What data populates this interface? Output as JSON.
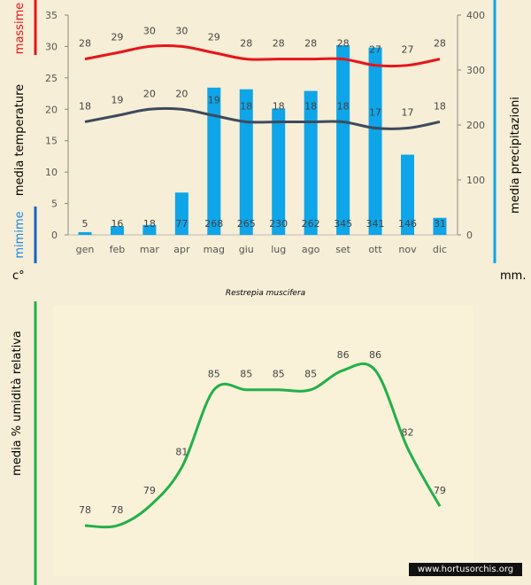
{
  "title": "Restrepia muscifera",
  "watermark": "www.hortusorchis.org",
  "labels": {
    "max": "massime",
    "mean_temp": "media  temperature",
    "min": "mimime",
    "precip": "media  precipitazioni",
    "temp_unit": "c°",
    "precip_unit": "mm.",
    "humidity": "media %  umidità relativa"
  },
  "colors": {
    "max": "#e8141b",
    "mean": "#3d4a5e",
    "bars": "#0ea5e9",
    "humidity": "#22b04a",
    "min_marker": "#1565c0",
    "background": "#f6eed6"
  },
  "chart_data": [
    {
      "type": "bar+line",
      "categories": [
        "gen",
        "feb",
        "mar",
        "apr",
        "mag",
        "giu",
        "lug",
        "ago",
        "set",
        "ott",
        "nov",
        "dic"
      ],
      "left_axis": {
        "ylim": [
          0,
          35
        ],
        "ticks": [
          0,
          5,
          10,
          15,
          20,
          25,
          30,
          35
        ]
      },
      "right_axis": {
        "ylim": [
          0,
          400
        ],
        "ticks": [
          0,
          100,
          200,
          300,
          400
        ]
      },
      "series": [
        {
          "name": "massime",
          "type": "line",
          "axis": "left",
          "values": [
            28,
            29,
            30,
            30,
            29,
            28,
            28,
            28,
            28,
            27,
            27,
            28
          ]
        },
        {
          "name": "media temperature",
          "type": "line",
          "axis": "left",
          "values": [
            18,
            19,
            20,
            20,
            19,
            18,
            18,
            18,
            18,
            17,
            17,
            18
          ]
        },
        {
          "name": "media precipitazioni",
          "type": "bar",
          "axis": "right",
          "values": [
            5,
            16,
            18,
            77,
            268,
            265,
            230,
            262,
            345,
            341,
            146,
            31
          ]
        }
      ]
    },
    {
      "type": "line",
      "categories": [
        "gen",
        "feb",
        "mar",
        "apr",
        "mag",
        "giu",
        "lug",
        "ago",
        "set",
        "ott",
        "nov",
        "dic"
      ],
      "series": [
        {
          "name": "media % umidità relativa",
          "values": [
            78,
            78,
            79,
            81,
            85,
            85,
            85,
            85,
            86,
            86,
            82,
            79
          ]
        }
      ]
    }
  ]
}
